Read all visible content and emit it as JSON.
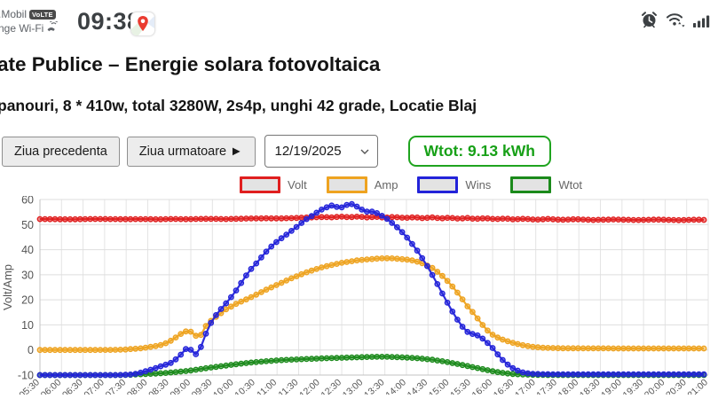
{
  "status_bar": {
    "carrier_line1": ".Mobil",
    "volte_badge": "VoLTE",
    "carrier_line2": "nge Wi-Fi",
    "time": "09:38",
    "right_icons": [
      "alarm-icon",
      "wifi-icon",
      "signal-bars-icon"
    ]
  },
  "page": {
    "title": "ate Publice – Energie solara fotovoltaica",
    "subtitle": "panouri, 8 * 410w, total 3280W, 2s4p, unghi 42 grade, Locatie Blaj"
  },
  "controls": {
    "prev_day_label": "Ziua precedenta",
    "next_day_label": "Ziua urmatoare ►",
    "date_value": "12/19/2025",
    "wtot_badge": "Wtot: 9.13 kWh",
    "wtot_color": "#17a017"
  },
  "chart_data": {
    "type": "line",
    "title": "",
    "xlabel": "",
    "ylabel": "Volt/Amp",
    "ylim": [
      -10,
      60
    ],
    "yticks": [
      60,
      50,
      40,
      30,
      20,
      10,
      0,
      -10
    ],
    "grid": true,
    "legend_position": "top",
    "legend": [
      "Volt",
      "Amp",
      "Wins",
      "Wtot"
    ],
    "x_unit": "minutes_since_05:30",
    "t_domain": [
      0,
      930
    ],
    "x_tick_interval_min": 30,
    "x_tick_labels": [
      "05:30",
      "06:00",
      "06:30",
      "07:00",
      "07:30",
      "08:00",
      "08:30",
      "09:00",
      "09:30",
      "10:00",
      "10:30",
      "11:00",
      "11:30",
      "12:00",
      "12:30",
      "13:00",
      "13:30",
      "14:00",
      "14:30",
      "15:00",
      "15:30",
      "16:00",
      "16:30",
      "17:00",
      "17:30",
      "18:00",
      "18:30",
      "19:00",
      "19:30",
      "20:00",
      "20:30",
      "21:00"
    ],
    "series": [
      {
        "name": "Volt",
        "color": "#e01f1f",
        "points": [
          [
            0,
            52.2
          ],
          [
            40,
            52.1
          ],
          [
            80,
            52.25
          ],
          [
            117,
            52.15
          ],
          [
            142,
            52.2
          ],
          [
            166,
            52.1
          ],
          [
            185,
            52.25
          ],
          [
            207,
            52.15
          ],
          [
            230,
            52.3
          ],
          [
            259,
            52.2
          ],
          [
            289,
            52.4
          ],
          [
            314,
            52.5
          ],
          [
            333,
            52.45
          ],
          [
            351,
            52.6
          ],
          [
            370,
            52.8
          ],
          [
            394,
            53.0
          ],
          [
            407,
            52.9
          ],
          [
            419,
            53.15
          ],
          [
            431,
            52.95
          ],
          [
            443,
            53.2
          ],
          [
            455,
            52.85
          ],
          [
            468,
            53.1
          ],
          [
            480,
            52.75
          ],
          [
            492,
            53.05
          ],
          [
            509,
            52.65
          ],
          [
            521,
            52.95
          ],
          [
            533,
            52.55
          ],
          [
            546,
            52.85
          ],
          [
            558,
            52.45
          ],
          [
            570,
            52.75
          ],
          [
            583,
            52.35
          ],
          [
            595,
            52.65
          ],
          [
            605,
            52.25
          ],
          [
            620,
            52.55
          ],
          [
            634,
            52.15
          ],
          [
            647,
            52.45
          ],
          [
            659,
            52.05
          ],
          [
            674,
            52.35
          ],
          [
            690,
            51.95
          ],
          [
            707,
            52.25
          ],
          [
            725,
            51.9
          ],
          [
            745,
            52.15
          ],
          [
            770,
            51.85
          ],
          [
            800,
            52.05
          ],
          [
            830,
            51.8
          ],
          [
            860,
            52.0
          ],
          [
            890,
            51.75
          ],
          [
            912,
            51.95
          ],
          [
            930,
            51.85
          ]
        ]
      },
      {
        "name": "Amp",
        "color": "#eea320",
        "points": [
          [
            0,
            0
          ],
          [
            60,
            0
          ],
          [
            100,
            0.05
          ],
          [
            117,
            0.15
          ],
          [
            142,
            0.7
          ],
          [
            166,
            1.8
          ],
          [
            178,
            3.0
          ],
          [
            185,
            4.2
          ],
          [
            197,
            6.6
          ],
          [
            207,
            7.9
          ],
          [
            212,
            6.9
          ],
          [
            218,
            5.4
          ],
          [
            224,
            6.0
          ],
          [
            230,
            9.3
          ],
          [
            238,
            11.6
          ],
          [
            246,
            13.4
          ],
          [
            259,
            16.2
          ],
          [
            275,
            18.7
          ],
          [
            289,
            20.4
          ],
          [
            302,
            22.2
          ],
          [
            314,
            23.9
          ],
          [
            333,
            26.4
          ],
          [
            351,
            28.7
          ],
          [
            370,
            30.9
          ],
          [
            394,
            33.1
          ],
          [
            419,
            34.7
          ],
          [
            443,
            35.8
          ],
          [
            468,
            36.4
          ],
          [
            480,
            36.6
          ],
          [
            492,
            36.5
          ],
          [
            509,
            36.1
          ],
          [
            521,
            35.6
          ],
          [
            533,
            34.5
          ],
          [
            546,
            32.7
          ],
          [
            558,
            30.1
          ],
          [
            570,
            26.7
          ],
          [
            583,
            22.2
          ],
          [
            595,
            17.4
          ],
          [
            605,
            14.2
          ],
          [
            613,
            11.0
          ],
          [
            620,
            8.6
          ],
          [
            626,
            6.9
          ],
          [
            634,
            5.3
          ],
          [
            647,
            3.8
          ],
          [
            659,
            2.8
          ],
          [
            672,
            1.9
          ],
          [
            684,
            1.3
          ],
          [
            700,
            0.9
          ],
          [
            721,
            0.7
          ],
          [
            760,
            0.65
          ],
          [
            820,
            0.6
          ],
          [
            880,
            0.6
          ],
          [
            930,
            0.6
          ]
        ]
      },
      {
        "name": "Wins",
        "color": "#2323d9",
        "points": [
          [
            0,
            -10
          ],
          [
            60,
            -10
          ],
          [
            100,
            -10
          ],
          [
            117,
            -9.95
          ],
          [
            130,
            -9.7
          ],
          [
            142,
            -8.9
          ],
          [
            155,
            -7.8
          ],
          [
            166,
            -6.7
          ],
          [
            178,
            -5.6
          ],
          [
            185,
            -4.8
          ],
          [
            191,
            -3.2
          ],
          [
            197,
            -1.6
          ],
          [
            203,
            0.4
          ],
          [
            207,
            1.1
          ],
          [
            212,
            -0.6
          ],
          [
            218,
            -1.9
          ],
          [
            224,
            1.2
          ],
          [
            230,
            5.8
          ],
          [
            236,
            9.8
          ],
          [
            242,
            12.8
          ],
          [
            250,
            15.7
          ],
          [
            259,
            18.6
          ],
          [
            268,
            21.8
          ],
          [
            275,
            24.5
          ],
          [
            283,
            28.0
          ],
          [
            289,
            30.6
          ],
          [
            296,
            33.0
          ],
          [
            302,
            34.8
          ],
          [
            308,
            36.9
          ],
          [
            314,
            38.9
          ],
          [
            321,
            41.0
          ],
          [
            327,
            42.6
          ],
          [
            333,
            43.9
          ],
          [
            340,
            45.4
          ],
          [
            347,
            46.8
          ],
          [
            355,
            48.6
          ],
          [
            363,
            50.4
          ],
          [
            370,
            52.0
          ],
          [
            377,
            53.2
          ],
          [
            382,
            54.2
          ],
          [
            388,
            55.3
          ],
          [
            394,
            56.3
          ],
          [
            400,
            57.0
          ],
          [
            407,
            57.7
          ],
          [
            412,
            57.2
          ],
          [
            417,
            56.4
          ],
          [
            423,
            57.3
          ],
          [
            428,
            58.0
          ],
          [
            433,
            58.3
          ],
          [
            438,
            57.6
          ],
          [
            443,
            56.9
          ],
          [
            450,
            55.6
          ],
          [
            456,
            55.1
          ],
          [
            462,
            55.2
          ],
          [
            468,
            54.7
          ],
          [
            474,
            53.8
          ],
          [
            480,
            52.9
          ],
          [
            486,
            51.6
          ],
          [
            492,
            50.2
          ],
          [
            498,
            48.7
          ],
          [
            504,
            47.0
          ],
          [
            509,
            45.5
          ],
          [
            515,
            43.4
          ],
          [
            521,
            41.2
          ],
          [
            527,
            38.8
          ],
          [
            533,
            36.2
          ],
          [
            540,
            33.0
          ],
          [
            546,
            29.9
          ],
          [
            552,
            26.8
          ],
          [
            558,
            23.6
          ],
          [
            564,
            20.4
          ],
          [
            570,
            17.3
          ],
          [
            576,
            14.3
          ],
          [
            583,
            11.2
          ],
          [
            589,
            8.9
          ],
          [
            595,
            7.2
          ],
          [
            600,
            6.3
          ],
          [
            605,
            6.6
          ],
          [
            609,
            5.8
          ],
          [
            613,
            4.9
          ],
          [
            617,
            4.4
          ],
          [
            620,
            3.6
          ],
          [
            626,
            2.0
          ],
          [
            630,
            0.8
          ],
          [
            634,
            -0.7
          ],
          [
            640,
            -2.8
          ],
          [
            647,
            -4.9
          ],
          [
            654,
            -6.5
          ],
          [
            660,
            -7.6
          ],
          [
            667,
            -8.5
          ],
          [
            674,
            -9.1
          ],
          [
            684,
            -9.5
          ],
          [
            700,
            -9.65
          ],
          [
            730,
            -9.7
          ],
          [
            800,
            -9.7
          ],
          [
            870,
            -9.7
          ],
          [
            930,
            -9.7
          ]
        ]
      },
      {
        "name": "Wtot",
        "color": "#1b8a1b",
        "points": [
          [
            0,
            -10
          ],
          [
            60,
            -10
          ],
          [
            110,
            -10
          ],
          [
            125,
            -9.9
          ],
          [
            142,
            -9.65
          ],
          [
            166,
            -9.35
          ],
          [
            185,
            -8.9
          ],
          [
            207,
            -8.3
          ],
          [
            230,
            -7.3
          ],
          [
            246,
            -6.7
          ],
          [
            259,
            -6.2
          ],
          [
            275,
            -5.6
          ],
          [
            289,
            -5.15
          ],
          [
            302,
            -4.8
          ],
          [
            314,
            -4.5
          ],
          [
            333,
            -4.1
          ],
          [
            351,
            -3.85
          ],
          [
            370,
            -3.6
          ],
          [
            394,
            -3.35
          ],
          [
            419,
            -3.1
          ],
          [
            443,
            -2.9
          ],
          [
            460,
            -2.75
          ],
          [
            480,
            -2.7
          ],
          [
            492,
            -2.8
          ],
          [
            509,
            -3.0
          ],
          [
            521,
            -3.2
          ],
          [
            533,
            -3.5
          ],
          [
            546,
            -3.9
          ],
          [
            558,
            -4.4
          ],
          [
            570,
            -5.0
          ],
          [
            583,
            -5.7
          ],
          [
            595,
            -6.4
          ],
          [
            605,
            -7.0
          ],
          [
            613,
            -7.4
          ],
          [
            620,
            -7.9
          ],
          [
            634,
            -8.7
          ],
          [
            647,
            -9.25
          ],
          [
            659,
            -9.6
          ],
          [
            674,
            -9.8
          ],
          [
            690,
            -9.92
          ],
          [
            710,
            -10
          ],
          [
            780,
            -10
          ],
          [
            860,
            -10
          ],
          [
            930,
            -10
          ]
        ]
      }
    ],
    "draw_order": [
      "Volt",
      "Amp",
      "Wtot",
      "Wins"
    ]
  }
}
